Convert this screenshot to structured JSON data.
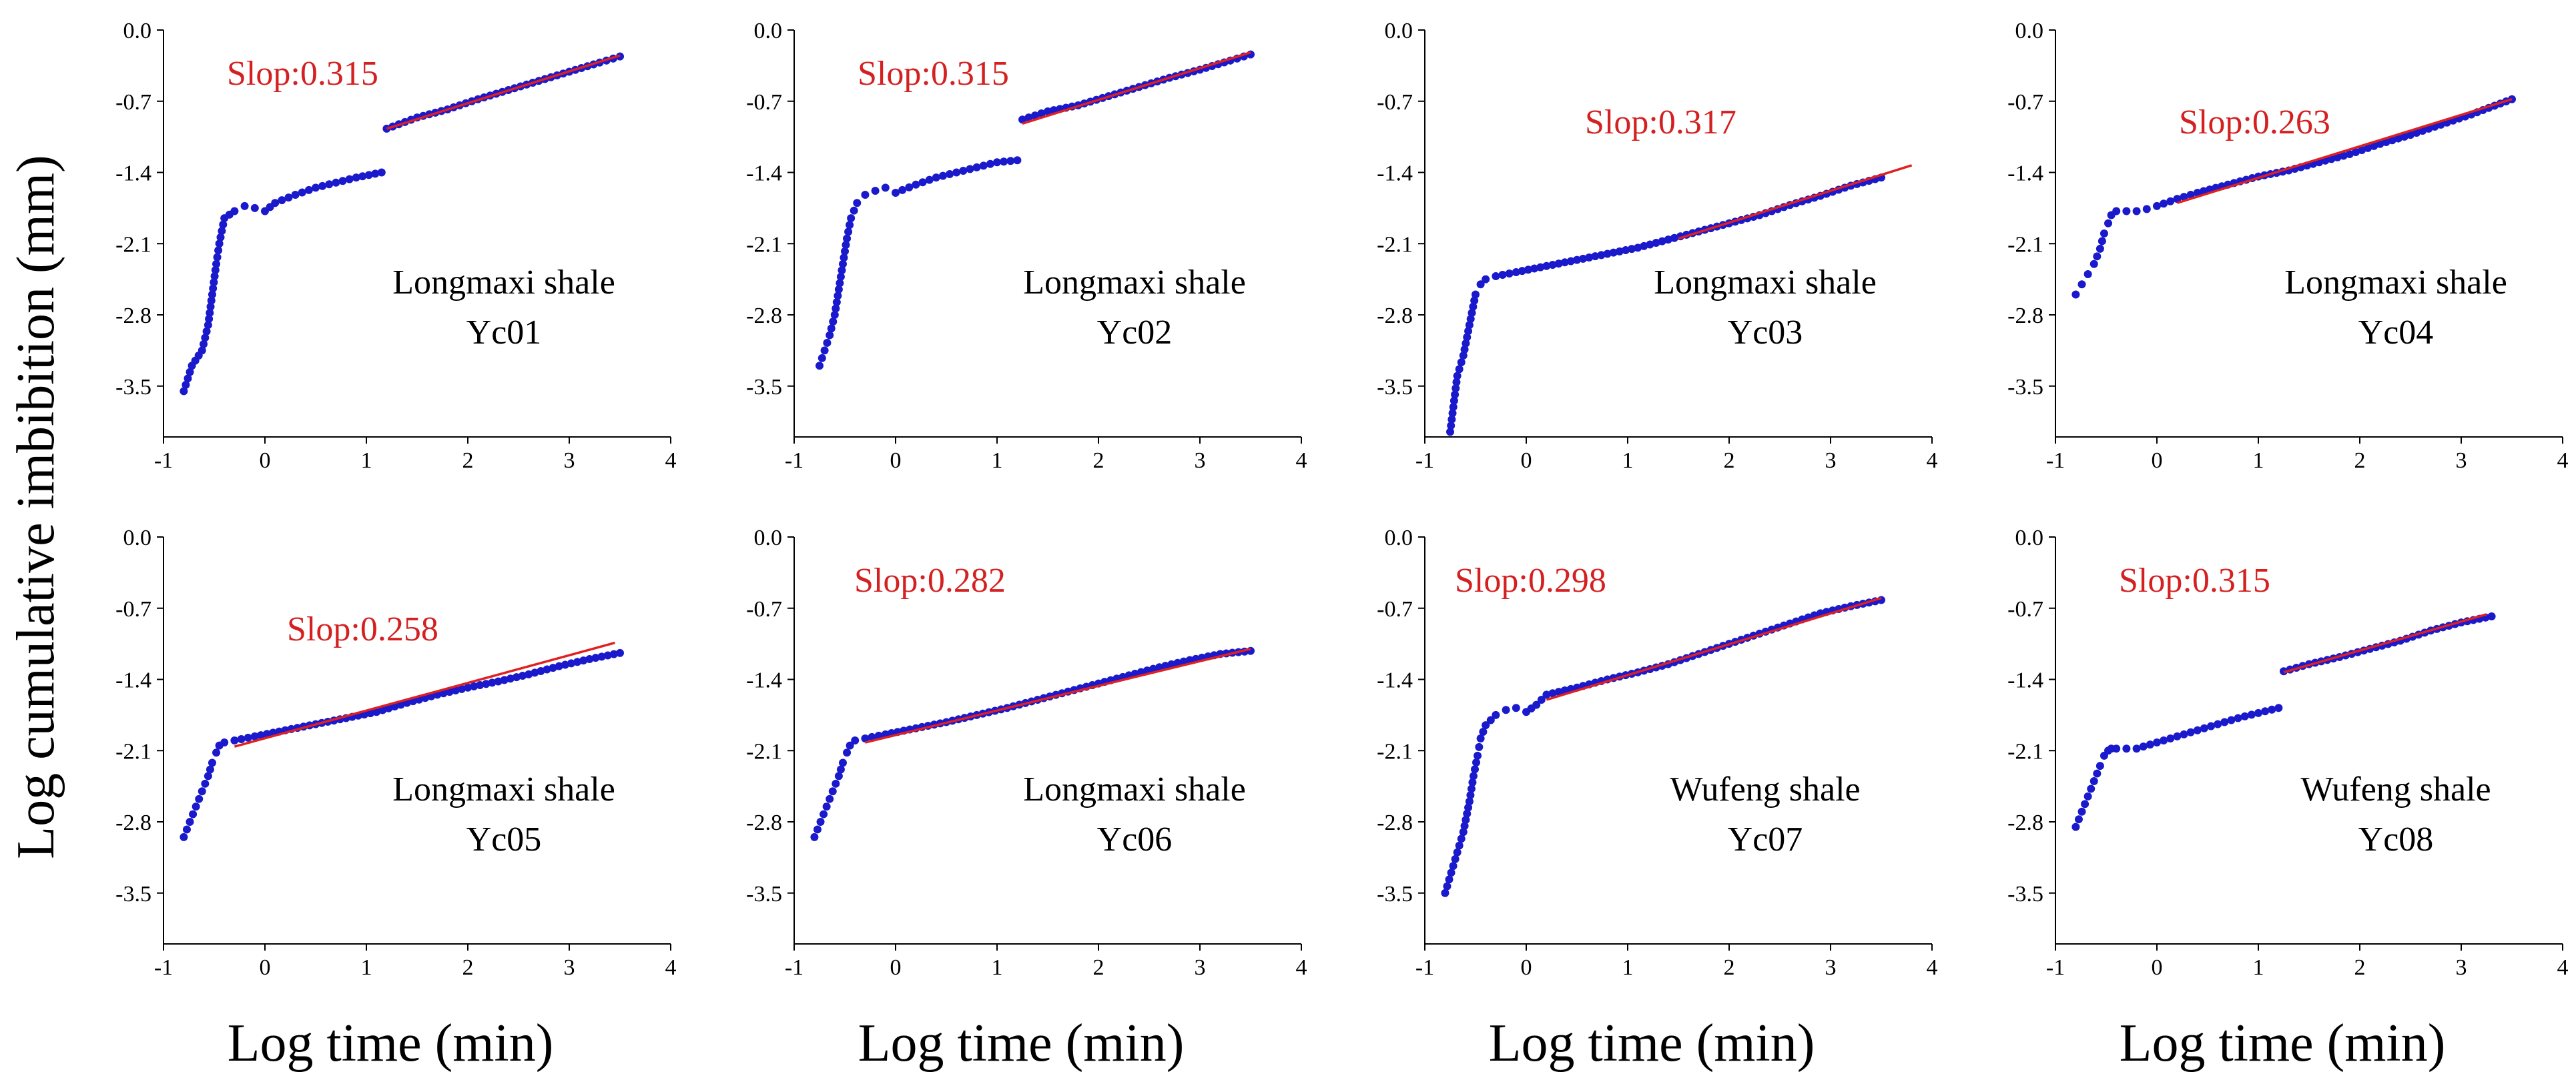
{
  "figure": {
    "ylabel": "Log cumulative imbibition (mm)",
    "xlabel": "Log time (min)",
    "colors": {
      "points": "#1a1acc",
      "fit": "#e02020",
      "slope_text": "#d42020",
      "axis": "#000000"
    }
  },
  "chart_data": [
    {
      "type": "scatter",
      "lithology": "Longmaxi shale",
      "sample": "Yc01",
      "slope_label": "Slop:0.315",
      "xlim": [
        -1,
        4
      ],
      "ylim": [
        -4.0,
        0.0
      ],
      "xticks": [
        "-1",
        "0",
        "1",
        "2",
        "3",
        "4"
      ],
      "yticks": [
        "0.0",
        "-0.7",
        "-1.4",
        "-2.1",
        "-2.8",
        "-3.5"
      ],
      "series": [
        {
          "x": [
            -0.8,
            -0.72,
            -0.62,
            -0.56,
            -0.52,
            -0.48,
            -0.45,
            -0.4,
            -0.3,
            -0.2,
            -0.1,
            0.0,
            0.1,
            0.3,
            0.5,
            0.7,
            0.9,
            1.15
          ],
          "y": [
            -3.55,
            -3.3,
            -3.15,
            -2.9,
            -2.6,
            -2.3,
            -2.1,
            -1.85,
            -1.78,
            -1.73,
            -1.75,
            -1.78,
            -1.7,
            -1.62,
            -1.55,
            -1.5,
            -1.45,
            -1.4
          ]
        },
        {
          "x": [
            1.2,
            1.5,
            1.8,
            2.1,
            2.4,
            2.7,
            3.0,
            3.3,
            3.5
          ],
          "y": [
            -0.97,
            -0.86,
            -0.78,
            -0.68,
            -0.59,
            -0.5,
            -0.41,
            -0.32,
            -0.26
          ]
        }
      ],
      "fit_line": {
        "x": [
          1.2,
          3.5
        ],
        "y": [
          -0.97,
          -0.25
        ]
      }
    },
    {
      "type": "scatter",
      "lithology": "Longmaxi shale",
      "sample": "Yc02",
      "slope_label": "Slop:0.315",
      "xlim": [
        -1,
        4
      ],
      "ylim": [
        -4.0,
        0.0
      ],
      "xticks": [
        "-1",
        "0",
        "1",
        "2",
        "3",
        "4"
      ],
      "yticks": [
        "0.0",
        "-0.7",
        "-1.4",
        "-2.1",
        "-2.8",
        "-3.5"
      ],
      "series": [
        {
          "x": [
            -0.75,
            -0.7,
            -0.65,
            -0.6,
            -0.56,
            -0.52,
            -0.48,
            -0.44,
            -0.38,
            -0.3,
            -0.2,
            -0.1,
            0.0,
            0.2,
            0.4,
            0.6,
            0.8,
            1.0,
            1.2
          ],
          "y": [
            -3.3,
            -3.15,
            -3.0,
            -2.8,
            -2.55,
            -2.3,
            -2.05,
            -1.85,
            -1.7,
            -1.62,
            -1.58,
            -1.55,
            -1.6,
            -1.52,
            -1.45,
            -1.4,
            -1.35,
            -1.3,
            -1.28
          ]
        },
        {
          "x": [
            1.25,
            1.5,
            1.8,
            2.1,
            2.4,
            2.7,
            3.0,
            3.3,
            3.5
          ],
          "y": [
            -0.88,
            -0.8,
            -0.74,
            -0.65,
            -0.56,
            -0.47,
            -0.39,
            -0.3,
            -0.24
          ]
        }
      ],
      "fit_line": {
        "x": [
          1.25,
          3.5
        ],
        "y": [
          -0.92,
          -0.22
        ]
      }
    },
    {
      "type": "scatter",
      "lithology": "Longmaxi shale",
      "sample": "Yc03",
      "slope_label": "Slop:0.317",
      "xlim": [
        -1,
        4
      ],
      "ylim": [
        -4.0,
        0.0
      ],
      "xticks": [
        "-1",
        "0",
        "1",
        "2",
        "3",
        "4"
      ],
      "yticks": [
        "0.0",
        "-0.7",
        "-1.4",
        "-2.1",
        "-2.8",
        "-3.5"
      ],
      "series": [
        {
          "x": [
            -0.75,
            -0.68,
            -0.62,
            -0.56,
            -0.5,
            -0.45,
            -0.4,
            -0.3,
            -0.1,
            0.2,
            0.5,
            0.8,
            1.1,
            1.4,
            1.7,
            2.0,
            2.3,
            2.6,
            2.9,
            3.2,
            3.5
          ],
          "y": [
            -3.95,
            -3.4,
            -3.2,
            -2.9,
            -2.6,
            -2.5,
            -2.45,
            -2.42,
            -2.38,
            -2.32,
            -2.26,
            -2.2,
            -2.14,
            -2.06,
            -1.98,
            -1.9,
            -1.82,
            -1.72,
            -1.63,
            -1.53,
            -1.45
          ]
        }
      ],
      "fit_line": {
        "x": [
          1.5,
          3.8
        ],
        "y": [
          -2.05,
          -1.33
        ]
      }
    },
    {
      "type": "scatter",
      "lithology": "Longmaxi shale",
      "sample": "Yc04",
      "slope_label": "Slop:0.263",
      "xlim": [
        -1,
        4
      ],
      "ylim": [
        -4.0,
        0.0
      ],
      "xticks": [
        "-1",
        "0",
        "1",
        "2",
        "3",
        "4"
      ],
      "yticks": [
        "0.0",
        "-0.7",
        "-1.4",
        "-2.1",
        "-2.8",
        "-3.5"
      ],
      "series": [
        {
          "x": [
            -0.8,
            -0.74,
            -0.68,
            -0.62,
            -0.56,
            -0.52,
            -0.48,
            -0.45,
            -0.4,
            -0.3,
            -0.2,
            -0.1,
            0.0,
            0.2,
            0.4,
            0.7,
            1.0,
            1.3,
            1.6,
            1.9,
            2.2,
            2.5,
            2.8,
            3.1,
            3.5
          ],
          "y": [
            -2.6,
            -2.5,
            -2.4,
            -2.3,
            -2.15,
            -2.0,
            -1.9,
            -1.82,
            -1.78,
            -1.78,
            -1.78,
            -1.76,
            -1.73,
            -1.66,
            -1.6,
            -1.52,
            -1.44,
            -1.38,
            -1.3,
            -1.22,
            -1.12,
            -1.03,
            -0.93,
            -0.83,
            -0.68
          ]
        }
      ],
      "fit_line": {
        "x": [
          0.2,
          3.5
        ],
        "y": [
          -1.7,
          -0.68
        ]
      }
    },
    {
      "type": "scatter",
      "lithology": "Longmaxi shale",
      "sample": "Yc05",
      "slope_label": "Slop:0.258",
      "xlim": [
        -1,
        4
      ],
      "ylim": [
        -4.0,
        0.0
      ],
      "xticks": [
        "-1",
        "0",
        "1",
        "2",
        "3",
        "4"
      ],
      "yticks": [
        "0.0",
        "-0.7",
        "-1.4",
        "-2.1",
        "-2.8",
        "-3.5"
      ],
      "series": [
        {
          "x": [
            -0.8,
            -0.74,
            -0.68,
            -0.62,
            -0.56,
            -0.52,
            -0.48,
            -0.45,
            -0.4,
            -0.3,
            -0.1,
            0.2,
            0.5,
            0.8,
            1.1,
            1.4,
            1.7,
            2.0,
            2.3,
            2.6,
            2.9,
            3.2,
            3.5
          ],
          "y": [
            -2.95,
            -2.8,
            -2.65,
            -2.5,
            -2.35,
            -2.22,
            -2.12,
            -2.05,
            -2.02,
            -2.0,
            -1.96,
            -1.9,
            -1.84,
            -1.78,
            -1.72,
            -1.63,
            -1.55,
            -1.48,
            -1.42,
            -1.35,
            -1.27,
            -1.2,
            -1.14
          ]
        }
      ],
      "fit_line": {
        "x": [
          -0.3,
          3.45
        ],
        "y": [
          -2.06,
          -1.04
        ]
      }
    },
    {
      "type": "scatter",
      "lithology": "Longmaxi shale",
      "sample": "Yc06",
      "slope_label": "Slop:0.282",
      "xlim": [
        -1,
        4
      ],
      "ylim": [
        -4.0,
        0.0
      ],
      "xticks": [
        "-1",
        "0",
        "1",
        "2",
        "3",
        "4"
      ],
      "yticks": [
        "0.0",
        "-0.7",
        "-1.4",
        "-2.1",
        "-2.8",
        "-3.5"
      ],
      "series": [
        {
          "x": [
            -0.8,
            -0.74,
            -0.68,
            -0.62,
            -0.56,
            -0.52,
            -0.48,
            -0.45,
            -0.4,
            -0.3,
            -0.1,
            0.2,
            0.5,
            0.8,
            1.1,
            1.4,
            1.7,
            2.0,
            2.3,
            2.6,
            2.9,
            3.2,
            3.5
          ],
          "y": [
            -2.95,
            -2.8,
            -2.65,
            -2.5,
            -2.35,
            -2.22,
            -2.12,
            -2.05,
            -2.0,
            -1.98,
            -1.94,
            -1.88,
            -1.82,
            -1.75,
            -1.68,
            -1.6,
            -1.52,
            -1.44,
            -1.36,
            -1.28,
            -1.21,
            -1.15,
            -1.12
          ]
        }
      ],
      "fit_line": {
        "x": [
          -0.3,
          3.5
        ],
        "y": [
          -2.02,
          -1.1
        ]
      }
    },
    {
      "type": "scatter",
      "lithology": "Wufeng shale",
      "sample": "Yc07",
      "slope_label": "Slop:0.298",
      "xlim": [
        -1,
        4
      ],
      "ylim": [
        -4.0,
        0.0
      ],
      "xticks": [
        "-1",
        "0",
        "1",
        "2",
        "3",
        "4"
      ],
      "yticks": [
        "0.0",
        "-0.7",
        "-1.4",
        "-2.1",
        "-2.8",
        "-3.5"
      ],
      "series": [
        {
          "x": [
            -0.8,
            -0.74,
            -0.68,
            -0.62,
            -0.56,
            -0.52,
            -0.48,
            -0.45,
            -0.4,
            -0.3,
            -0.2,
            -0.1,
            0.0,
            0.1,
            0.2,
            0.5,
            0.8,
            1.1,
            1.4,
            1.7,
            2.0,
            2.3,
            2.6,
            2.9,
            3.2,
            3.5
          ],
          "y": [
            -3.5,
            -3.3,
            -3.1,
            -2.9,
            -2.6,
            -2.35,
            -2.15,
            -1.98,
            -1.85,
            -1.75,
            -1.7,
            -1.68,
            -1.72,
            -1.65,
            -1.55,
            -1.48,
            -1.4,
            -1.33,
            -1.25,
            -1.15,
            -1.05,
            -0.95,
            -0.85,
            -0.75,
            -0.68,
            -0.62
          ]
        }
      ],
      "fit_line": {
        "x": [
          0.2,
          3.5
        ],
        "y": [
          -1.6,
          -0.6
        ]
      }
    },
    {
      "type": "scatter",
      "lithology": "Wufeng shale",
      "sample": "Yc08",
      "slope_label": "Slop:0.315",
      "xlim": [
        -1,
        4
      ],
      "ylim": [
        -4.0,
        0.0
      ],
      "xticks": [
        "-1",
        "0",
        "1",
        "2",
        "3",
        "4"
      ],
      "yticks": [
        "0.0",
        "-0.7",
        "-1.4",
        "-2.1",
        "-2.8",
        "-3.5"
      ],
      "series": [
        {
          "x": [
            -0.8,
            -0.74,
            -0.68,
            -0.62,
            -0.56,
            -0.52,
            -0.48,
            -0.45,
            -0.4,
            -0.3,
            -0.2,
            0.0,
            0.2,
            0.4,
            0.6,
            0.8,
            1.0,
            1.2
          ],
          "y": [
            -2.85,
            -2.7,
            -2.55,
            -2.4,
            -2.25,
            -2.15,
            -2.1,
            -2.08,
            -2.08,
            -2.08,
            -2.08,
            -2.02,
            -1.96,
            -1.9,
            -1.84,
            -1.78,
            -1.73,
            -1.68
          ]
        },
        {
          "x": [
            1.25,
            1.5,
            1.8,
            2.1,
            2.4,
            2.7,
            3.0,
            3.3
          ],
          "y": [
            -1.32,
            -1.25,
            -1.18,
            -1.1,
            -1.02,
            -0.92,
            -0.84,
            -0.78
          ]
        }
      ],
      "fit_line": {
        "x": [
          1.25,
          3.25
        ],
        "y": [
          -1.33,
          -0.76
        ]
      }
    }
  ]
}
